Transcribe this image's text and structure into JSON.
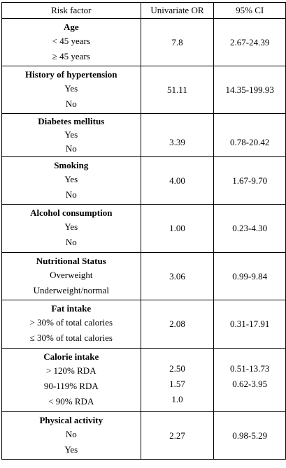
{
  "table": {
    "headers": [
      "Risk factor",
      "Univariate OR",
      "95% CI"
    ],
    "groups": [
      {
        "name": "Age",
        "levels": [
          "< 45 years",
          "≥ 45 years"
        ],
        "or": [
          "7.8"
        ],
        "ci": [
          "2.67-24.39"
        ]
      },
      {
        "name": "History of hypertension",
        "levels": [
          "Yes",
          "No"
        ],
        "or": [
          "51.11"
        ],
        "ci": [
          "14.35-199.93"
        ]
      },
      {
        "name": "Diabetes mellitus",
        "levels": [
          "Yes",
          "No"
        ],
        "or": [
          "3.39"
        ],
        "ci": [
          "0.78-20.42"
        ]
      },
      {
        "name": "Smoking",
        "levels": [
          "Yes",
          "No"
        ],
        "or": [
          "4.00"
        ],
        "ci": [
          "1.67-9.70"
        ]
      },
      {
        "name": "Alcohol consumption",
        "levels": [
          "Yes",
          "No"
        ],
        "or": [
          "1.00"
        ],
        "ci": [
          "0.23-4.30"
        ]
      },
      {
        "name": "Nutritional Status",
        "levels": [
          "Overweight",
          "Underweight/normal"
        ],
        "or": [
          "3.06"
        ],
        "ci": [
          "0.99-9.84"
        ]
      },
      {
        "name": "Fat intake",
        "levels": [
          "> 30% of total calories",
          "≤ 30% of total calories"
        ],
        "or": [
          "2.08"
        ],
        "ci": [
          "0.31-17.91"
        ]
      },
      {
        "name": "Calorie intake",
        "levels": [
          "> 120% RDA",
          "90-119% RDA",
          "< 90% RDA"
        ],
        "or": [
          "2.50",
          "1.57",
          "1.0"
        ],
        "ci": [
          "0.51-13.73",
          "0.62-3.95",
          ""
        ]
      },
      {
        "name": "Physical activity",
        "levels": [
          "No",
          "Yes"
        ],
        "or": [
          "2.27"
        ],
        "ci": [
          "0.98-5.29"
        ]
      }
    ]
  }
}
